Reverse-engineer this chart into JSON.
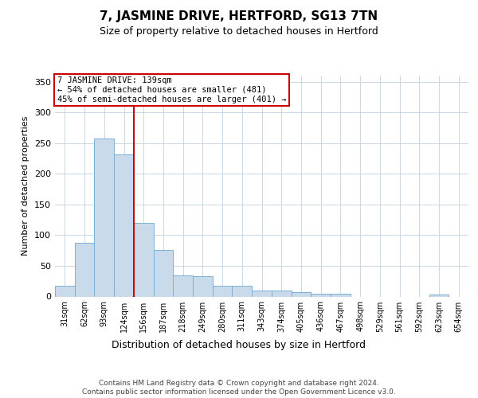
{
  "title": "7, JASMINE DRIVE, HERTFORD, SG13 7TN",
  "subtitle": "Size of property relative to detached houses in Hertford",
  "xlabel": "Distribution of detached houses by size in Hertford",
  "ylabel": "Number of detached properties",
  "bar_color": "#c9daea",
  "bar_edge_color": "#7ab0d4",
  "grid_color": "#c8d8e8",
  "annotation_text": "7 JASMINE DRIVE: 139sqm\n← 54% of detached houses are smaller (481)\n45% of semi-detached houses are larger (401) →",
  "annotation_box_color": "#ffffff",
  "annotation_edge_color": "#cc0000",
  "red_line_color": "#cc0000",
  "footer": "Contains HM Land Registry data © Crown copyright and database right 2024.\nContains public sector information licensed under the Open Government Licence v3.0.",
  "categories": [
    "31sqm",
    "62sqm",
    "93sqm",
    "124sqm",
    "156sqm",
    "187sqm",
    "218sqm",
    "249sqm",
    "280sqm",
    "311sqm",
    "343sqm",
    "374sqm",
    "405sqm",
    "436sqm",
    "467sqm",
    "498sqm",
    "529sqm",
    "561sqm",
    "592sqm",
    "623sqm",
    "654sqm"
  ],
  "values": [
    18,
    88,
    258,
    232,
    120,
    76,
    34,
    33,
    18,
    18,
    10,
    10,
    7,
    5,
    4,
    0,
    0,
    0,
    0,
    3,
    0
  ],
  "red_line_bin": 3,
  "ylim": [
    0,
    360
  ],
  "yticks": [
    0,
    50,
    100,
    150,
    200,
    250,
    300,
    350
  ]
}
